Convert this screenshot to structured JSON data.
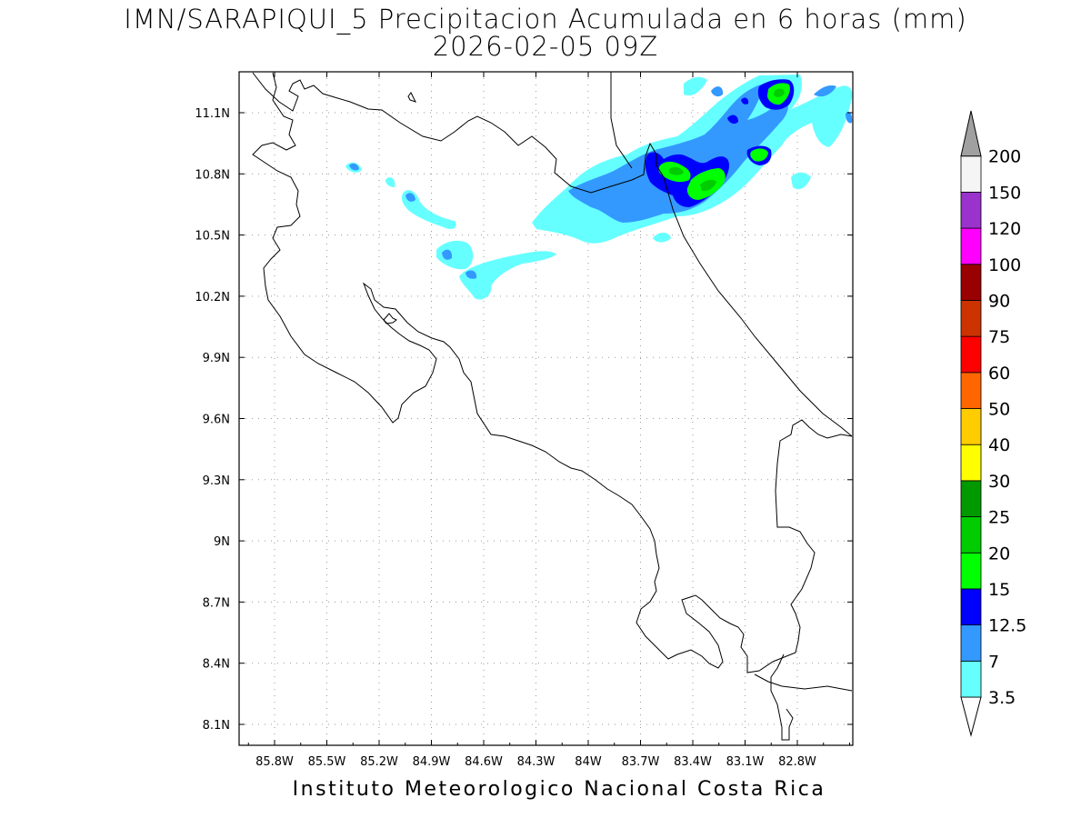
{
  "title": {
    "line1": "IMN/SARAPIQUI_5 Precipitacion Acumulada en 6 horas (mm)",
    "line2": "2026-02-05 09Z"
  },
  "footer": "Instituto Meteorologico Nacional Costa Rica",
  "map": {
    "x_ticks": [
      "85.8W",
      "85.5W",
      "85.2W",
      "84.9W",
      "84.6W",
      "84.3W",
      "84W",
      "83.7W",
      "83.4W",
      "83.1W",
      "82.8W"
    ],
    "y_ticks": [
      "11.1N",
      "10.8N",
      "10.5N",
      "10.2N",
      "9.9N",
      "9.6N",
      "9.3N",
      "9N",
      "8.7N",
      "8.4N",
      "8.1N"
    ],
    "grid": "dotted"
  },
  "colorbar": {
    "labels": [
      "3.5",
      "7",
      "12.5",
      "15",
      "20",
      "25",
      "30",
      "40",
      "50",
      "60",
      "75",
      "90",
      "100",
      "120",
      "150",
      "200"
    ],
    "colors": [
      "#66ffff",
      "#3399ff",
      "#0000ff",
      "#00ff00",
      "#00cc00",
      "#009900",
      "#ffff00",
      "#ffcc00",
      "#ff6600",
      "#ff0000",
      "#cc3300",
      "#990000",
      "#ff00ff",
      "#9933cc",
      "#f5f5f5",
      "#a0a0a0"
    ],
    "under_color": "#ffffff"
  }
}
